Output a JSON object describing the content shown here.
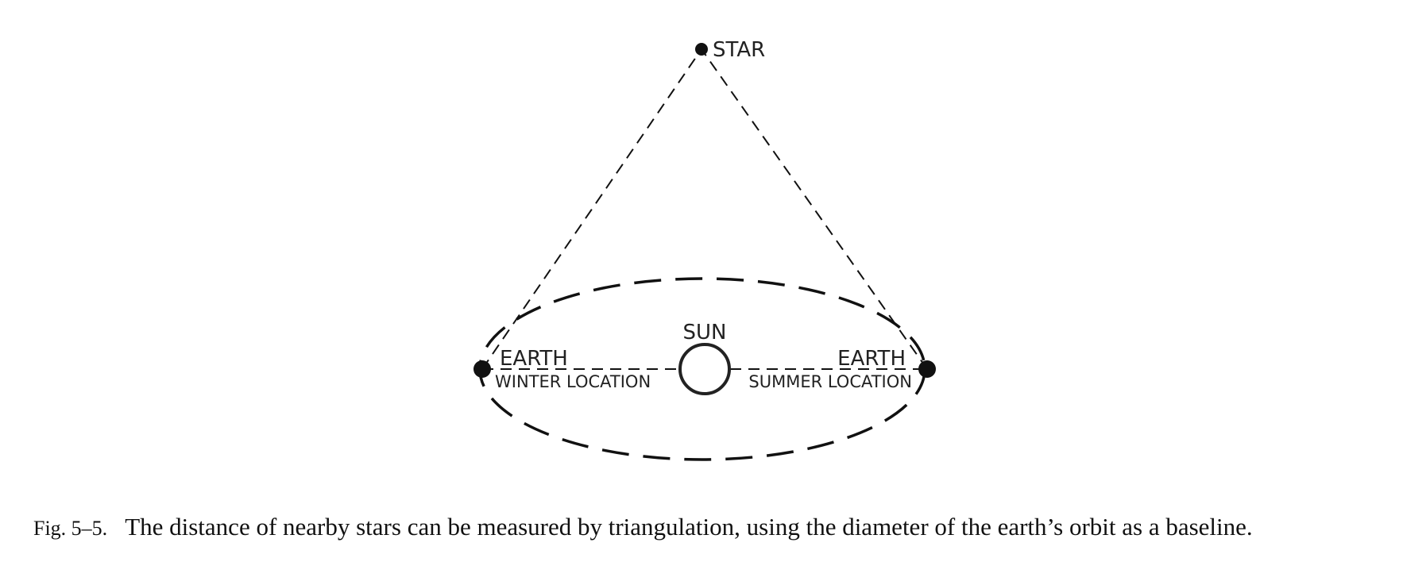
{
  "diagram": {
    "star_label": "STAR",
    "sun_label": "SUN",
    "earth_winter": {
      "name": "EARTH",
      "location": "WINTER LOCATION"
    },
    "earth_summer": {
      "name": "EARTH",
      "location": "SUMMER LOCATION"
    }
  },
  "caption": {
    "figure_number": "Fig. 5–5.",
    "text": "The distance of nearby stars can be measured by triangulation, using the diameter of the earth’s orbit as a baseline."
  },
  "colors": {
    "ink": "#111111",
    "background": "#ffffff"
  }
}
